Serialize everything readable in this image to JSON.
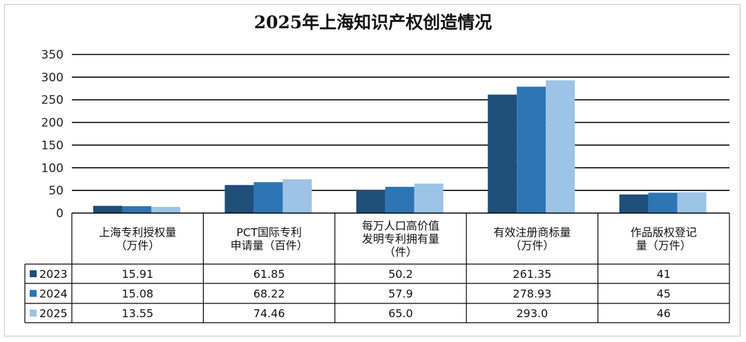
{
  "chart_data": {
    "type": "bar",
    "title": "2025年上海知识产权创造情况",
    "categories": [
      [
        "上海专利授权量",
        "（万件）"
      ],
      [
        "PCT国际专利",
        "申请量（百件）"
      ],
      [
        "每万人口高价值",
        "发明专利拥有量",
        "（件）"
      ],
      [
        "有效注册商标量",
        "（万件）"
      ],
      [
        "作品版权登记",
        "量（万件）"
      ]
    ],
    "series": [
      {
        "name": "2023",
        "color": "#1f4e79",
        "values": [
          15.91,
          61.85,
          50.2,
          261.35,
          41
        ],
        "labels": [
          "15.91",
          "61.85",
          "50.2",
          "261.35",
          "41"
        ]
      },
      {
        "name": "2024",
        "color": "#2e75b6",
        "values": [
          15.08,
          68.22,
          57.9,
          278.93,
          45
        ],
        "labels": [
          "15.08",
          "68.22",
          "57.9",
          "278.93",
          "45"
        ]
      },
      {
        "name": "2025",
        "color": "#9dc3e6",
        "values": [
          13.55,
          74.46,
          65.0,
          293.0,
          46
        ],
        "labels": [
          "13.55",
          "74.46",
          "65.0",
          "293.0",
          "46"
        ]
      }
    ],
    "yticks": [
      "0",
      "50",
      "100",
      "150",
      "200",
      "250",
      "300",
      "350"
    ],
    "ylim": [
      0,
      350
    ],
    "grid": true,
    "legend": "data-table-left"
  }
}
